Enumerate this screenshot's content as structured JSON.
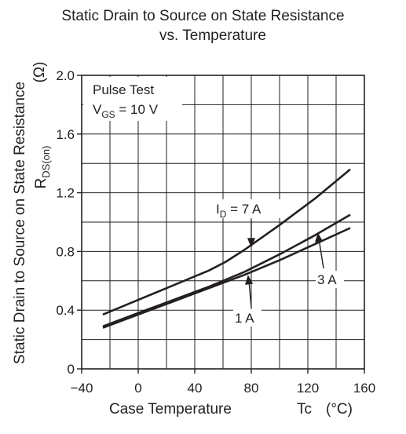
{
  "chart_data": {
    "type": "line",
    "title_line1": "Static Drain to Source on State Resistance",
    "title_line2": "vs. Temperature",
    "xlabel": "Case Temperature",
    "xlabel_symbol": "Tc",
    "xlabel_unit": "(°C)",
    "ylabel_text": "Static Drain to Source on State Resistance",
    "ylabel_symbol": "R",
    "ylabel_symbol_sub": "DS(on)",
    "ylabel_unit": "(Ω)",
    "xlim": [
      -40,
      160
    ],
    "ylim": [
      0,
      2.0
    ],
    "xticks": [
      -40,
      0,
      40,
      80,
      120,
      160
    ],
    "xtick_labels": [
      "−40",
      "0",
      "40",
      "80",
      "120",
      "160"
    ],
    "yticks": [
      0,
      0.4,
      0.8,
      1.2,
      1.6,
      2.0
    ],
    "ytick_labels": [
      "0",
      "0.4",
      "0.8",
      "1.2",
      "1.6",
      "2.0"
    ],
    "grid": true,
    "annotation_box": {
      "line1": "Pulse Test",
      "line2_main": "V",
      "line2_sub": "GS",
      "line2_rest": " = 10 V"
    },
    "series": [
      {
        "name": "I_D = 7 A",
        "label_main": "I",
        "label_sub": "D",
        "label_rest": " = 7 A",
        "x": [
          -25,
          0,
          25,
          50,
          62,
          75,
          100,
          125,
          150
        ],
        "y": [
          0.37,
          0.47,
          0.57,
          0.67,
          0.73,
          0.81,
          0.98,
          1.16,
          1.36
        ]
      },
      {
        "name": "3 A",
        "label_main": "3 A",
        "label_sub": "",
        "label_rest": "",
        "x": [
          -25,
          0,
          25,
          50,
          75,
          100,
          125,
          150
        ],
        "y": [
          0.29,
          0.38,
          0.47,
          0.56,
          0.66,
          0.78,
          0.91,
          1.05
        ]
      },
      {
        "name": "1 A",
        "label_main": "1 A",
        "label_sub": "",
        "label_rest": "",
        "x": [
          -25,
          0,
          25,
          50,
          75,
          100,
          125,
          150
        ],
        "y": [
          0.28,
          0.37,
          0.46,
          0.55,
          0.64,
          0.74,
          0.85,
          0.96
        ]
      }
    ]
  }
}
